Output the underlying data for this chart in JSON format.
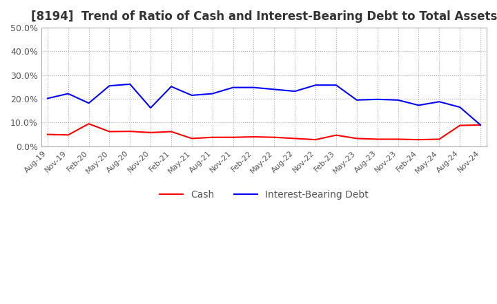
{
  "title": "[8194]  Trend of Ratio of Cash and Interest-Bearing Debt to Total Assets",
  "x_labels": [
    "Aug-19",
    "Nov-19",
    "Feb-20",
    "May-20",
    "Aug-20",
    "Nov-20",
    "Feb-21",
    "May-21",
    "Aug-21",
    "Nov-21",
    "Feb-22",
    "May-22",
    "Aug-22",
    "Nov-22",
    "Feb-23",
    "May-23",
    "Aug-23",
    "Nov-23",
    "Feb-24",
    "May-24",
    "Aug-24",
    "Nov-24"
  ],
  "cash": [
    0.05,
    0.048,
    0.095,
    0.062,
    0.063,
    0.058,
    0.062,
    0.033,
    0.038,
    0.038,
    0.04,
    0.038,
    0.033,
    0.028,
    0.047,
    0.033,
    0.03,
    0.03,
    0.028,
    0.03,
    0.088,
    0.09
  ],
  "interest_bearing_debt": [
    0.202,
    0.222,
    0.182,
    0.255,
    0.262,
    0.162,
    0.252,
    0.215,
    0.222,
    0.248,
    0.248,
    0.24,
    0.232,
    0.258,
    0.258,
    0.195,
    0.198,
    0.195,
    0.173,
    0.188,
    0.165,
    0.09
  ],
  "cash_color": "#ff0000",
  "debt_color": "#0000ff",
  "ylim": [
    0.0,
    0.5
  ],
  "yticks": [
    0.0,
    0.1,
    0.2,
    0.3,
    0.4,
    0.5
  ],
  "background_color": "#ffffff",
  "grid_color": "#aaaaaa",
  "title_fontsize": 12,
  "legend_labels": [
    "Cash",
    "Interest-Bearing Debt"
  ]
}
